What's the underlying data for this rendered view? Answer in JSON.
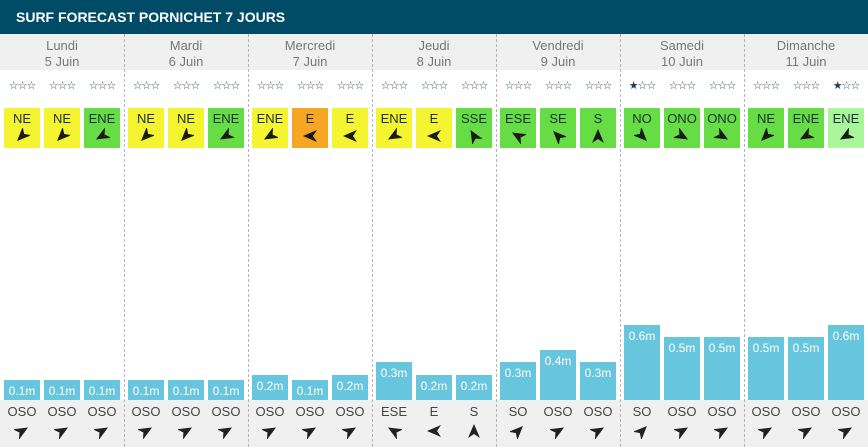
{
  "title": "SURF FORECAST PORNICHET 7 JOURS",
  "colors": {
    "header_bg": "#004b66",
    "wind_onshore": "#f4f430",
    "wind_strong": "#f5a623",
    "wind_offshore": "#66dd44",
    "wind_offshore_light": "#a9f59a",
    "wave_bar": "#68c5de",
    "star": "#1d3e5a"
  },
  "days": [
    {
      "name": "Lundi",
      "date": "5 Juin",
      "slots": [
        {
          "stars": 0,
          "wind": "NE",
          "wind_color": "wind_onshore",
          "wind_angle": 225,
          "wave": "0.1m",
          "wave_height_m": 0.1,
          "swell": "OSO",
          "swell_angle": 60
        },
        {
          "stars": 0,
          "wind": "NE",
          "wind_color": "wind_onshore",
          "wind_angle": 225,
          "wave": "0.1m",
          "wave_height_m": 0.1,
          "swell": "OSO",
          "swell_angle": 60
        },
        {
          "stars": 0,
          "wind": "ENE",
          "wind_color": "wind_offshore",
          "wind_angle": 240,
          "wave": "0.1m",
          "wave_height_m": 0.1,
          "swell": "OSO",
          "swell_angle": 60
        }
      ]
    },
    {
      "name": "Mardi",
      "date": "6 Juin",
      "slots": [
        {
          "stars": 0,
          "wind": "NE",
          "wind_color": "wind_onshore",
          "wind_angle": 225,
          "wave": "0.1m",
          "wave_height_m": 0.1,
          "swell": "OSO",
          "swell_angle": 60
        },
        {
          "stars": 0,
          "wind": "NE",
          "wind_color": "wind_onshore",
          "wind_angle": 225,
          "wave": "0.1m",
          "wave_height_m": 0.1,
          "swell": "OSO",
          "swell_angle": 60
        },
        {
          "stars": 0,
          "wind": "ENE",
          "wind_color": "wind_offshore",
          "wind_angle": 240,
          "wave": "0.1m",
          "wave_height_m": 0.1,
          "swell": "OSO",
          "swell_angle": 60
        }
      ]
    },
    {
      "name": "Mercredi",
      "date": "7 Juin",
      "slots": [
        {
          "stars": 0,
          "wind": "ENE",
          "wind_color": "wind_onshore",
          "wind_angle": 240,
          "wave": "0.2m",
          "wave_height_m": 0.2,
          "swell": "OSO",
          "swell_angle": 60
        },
        {
          "stars": 0,
          "wind": "E",
          "wind_color": "wind_strong",
          "wind_angle": 270,
          "wave": "0.1m",
          "wave_height_m": 0.1,
          "swell": "OSO",
          "swell_angle": 60
        },
        {
          "stars": 0,
          "wind": "E",
          "wind_color": "wind_onshore",
          "wind_angle": 270,
          "wave": "0.2m",
          "wave_height_m": 0.2,
          "swell": "OSO",
          "swell_angle": 60
        }
      ]
    },
    {
      "name": "Jeudi",
      "date": "8 Juin",
      "slots": [
        {
          "stars": 0,
          "wind": "ENE",
          "wind_color": "wind_onshore",
          "wind_angle": 240,
          "wave": "0.3m",
          "wave_height_m": 0.3,
          "swell": "ESE",
          "swell_angle": 300
        },
        {
          "stars": 0,
          "wind": "E",
          "wind_color": "wind_onshore",
          "wind_angle": 270,
          "wave": "0.2m",
          "wave_height_m": 0.2,
          "swell": "E",
          "swell_angle": 270
        },
        {
          "stars": 0,
          "wind": "SSE",
          "wind_color": "wind_offshore",
          "wind_angle": 330,
          "wave": "0.2m",
          "wave_height_m": 0.2,
          "swell": "S",
          "swell_angle": 0
        }
      ]
    },
    {
      "name": "Vendredi",
      "date": "9 Juin",
      "slots": [
        {
          "stars": 0,
          "wind": "ESE",
          "wind_color": "wind_offshore",
          "wind_angle": 300,
          "wave": "0.3m",
          "wave_height_m": 0.3,
          "swell": "SO",
          "swell_angle": 45
        },
        {
          "stars": 0,
          "wind": "SE",
          "wind_color": "wind_offshore",
          "wind_angle": 315,
          "wave": "0.4m",
          "wave_height_m": 0.4,
          "swell": "OSO",
          "swell_angle": 60
        },
        {
          "stars": 0,
          "wind": "S",
          "wind_color": "wind_offshore",
          "wind_angle": 0,
          "wave": "0.3m",
          "wave_height_m": 0.3,
          "swell": "OSO",
          "swell_angle": 60
        }
      ]
    },
    {
      "name": "Samedi",
      "date": "10 Juin",
      "slots": [
        {
          "stars": 1,
          "wind": "NO",
          "wind_color": "wind_offshore",
          "wind_angle": 135,
          "wave": "0.6m",
          "wave_height_m": 0.6,
          "swell": "SO",
          "swell_angle": 45
        },
        {
          "stars": 0,
          "wind": "ONO",
          "wind_color": "wind_offshore",
          "wind_angle": 120,
          "wave": "0.5m",
          "wave_height_m": 0.5,
          "swell": "OSO",
          "swell_angle": 60
        },
        {
          "stars": 0,
          "wind": "ONO",
          "wind_color": "wind_offshore",
          "wind_angle": 120,
          "wave": "0.5m",
          "wave_height_m": 0.5,
          "swell": "OSO",
          "swell_angle": 60
        }
      ]
    },
    {
      "name": "Dimanche",
      "date": "11 Juin",
      "slots": [
        {
          "stars": 0,
          "wind": "NE",
          "wind_color": "wind_offshore",
          "wind_angle": 225,
          "wave": "0.5m",
          "wave_height_m": 0.5,
          "swell": "OSO",
          "swell_angle": 60
        },
        {
          "stars": 0,
          "wind": "ENE",
          "wind_color": "wind_offshore",
          "wind_angle": 240,
          "wave": "0.5m",
          "wave_height_m": 0.5,
          "swell": "OSO",
          "swell_angle": 60
        },
        {
          "stars": 1,
          "wind": "ENE",
          "wind_color": "wind_offshore_light",
          "wind_angle": 240,
          "wave": "0.6m",
          "wave_height_m": 0.6,
          "swell": "OSO",
          "swell_angle": 60
        }
      ]
    }
  ]
}
